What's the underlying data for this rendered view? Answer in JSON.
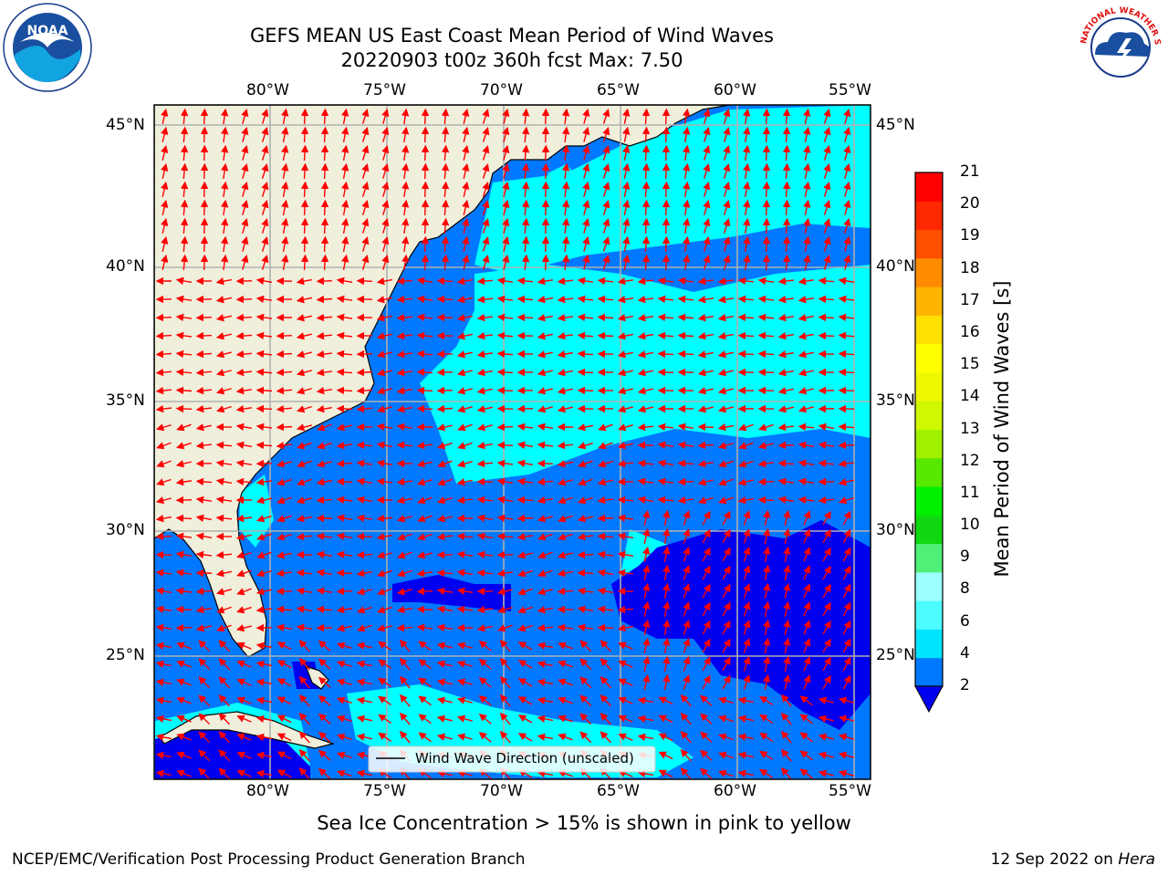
{
  "header": {
    "title": "GEFS MEAN US East Coast Mean Period of Wind Waves",
    "subtitle": "20220903 t00z 360h fcst   Max: 7.50"
  },
  "logos": {
    "left": {
      "name": "noaa-logo",
      "text": "NOAA"
    },
    "right": {
      "name": "nws-logo",
      "text": "NATIONAL WEATHER SERVICE"
    }
  },
  "map": {
    "lon_labels": [
      "80°W",
      "75°W",
      "70°W",
      "65°W",
      "60°W",
      "55°W"
    ],
    "lat_labels": [
      "45°N",
      "40°N",
      "35°N",
      "30°N",
      "25°N"
    ],
    "legend_label": "Wind Wave Direction (unscaled)",
    "colors": {
      "land": "#efefdc",
      "level_0_2": "#0000f0",
      "level_2_4": "#0078ff",
      "level_4_6": "#00ffff",
      "arrow": "#ff0000",
      "grid": "#b0b0b0"
    }
  },
  "colorbar": {
    "label": "Mean Period of Wind Waves [s]",
    "ticks": [
      "2",
      "4",
      "6",
      "8",
      "9",
      "10",
      "11",
      "12",
      "13",
      "14",
      "15",
      "16",
      "17",
      "18",
      "19",
      "20",
      "21"
    ],
    "colors": [
      "#0078ff",
      "#00e4ff",
      "#4cfcff",
      "#9cffff",
      "#50f078",
      "#10d810",
      "#00f000",
      "#58e800",
      "#a0f000",
      "#d0f800",
      "#f0f800",
      "#ffff00",
      "#ffe000",
      "#ffb400",
      "#ff8c00",
      "#ff5000",
      "#ff2800",
      "#ff0000"
    ]
  },
  "notes": {
    "sea_ice": "Sea Ice Concentration > 15% is shown in pink to yellow",
    "credit_left": "NCEP/EMC/Verification Post Processing Product Generation Branch",
    "credit_right_date": "12 Sep 2022 on ",
    "credit_right_machine": "Hera"
  }
}
